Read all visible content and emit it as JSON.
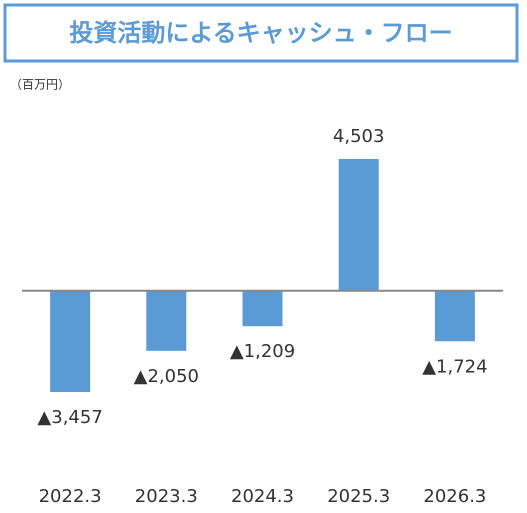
{
  "chart_data": {
    "type": "bar",
    "title": "投資活動によるキャッシュ・フロー",
    "unit_label": "（百万円）",
    "categories": [
      "2022.3",
      "2023.3",
      "2024.3",
      "2025.3",
      "2026.3"
    ],
    "values": [
      -3457,
      -2050,
      -1209,
      4503,
      -1724
    ],
    "value_labels": [
      "▲3,457",
      "▲2,050",
      "▲1,209",
      "4,503",
      "▲1,724"
    ],
    "color": "#5b9bd5"
  }
}
